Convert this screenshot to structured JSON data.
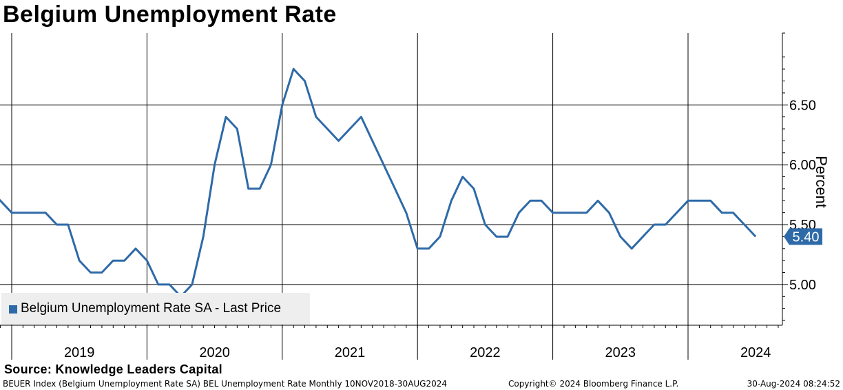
{
  "title": "Belgium Unemployment Rate",
  "source": "Source: Knowledge Leaders Capital",
  "footer": {
    "left": "BEUER Index (Belgium Unemployment Rate SA) BEL Unemployment Rate  Monthly 10NOV2018-30AUG2024",
    "middle": "Copyright© 2024 Bloomberg Finance L.P.",
    "right": "30-Aug-2024 08:24:52"
  },
  "colors": {
    "series": "#2e6aa8",
    "legend_bg": "#eeeeee",
    "last_tag": "#2e6aa8"
  },
  "chart_data": {
    "type": "line",
    "title": "Belgium Unemployment Rate",
    "xlabel": "",
    "ylabel": "Percent",
    "y_axis_side": "right",
    "ylim": [
      4.66,
      7.1
    ],
    "y_ticks": [
      5.0,
      5.5,
      6.0,
      6.5
    ],
    "y_tick_labels": [
      "5.00",
      "5.50",
      "6.00",
      "6.50"
    ],
    "x_ticks": [
      "2019",
      "2020",
      "2021",
      "2022",
      "2023",
      "2024"
    ],
    "grid": true,
    "legend": "bottom-left",
    "last_value_label": "5.40",
    "series": [
      {
        "name": "Belgium Unemployment Rate SA - Last Price",
        "x": [
          "2018-11",
          "2018-12",
          "2019-01",
          "2019-02",
          "2019-03",
          "2019-04",
          "2019-05",
          "2019-06",
          "2019-07",
          "2019-08",
          "2019-09",
          "2019-10",
          "2019-11",
          "2019-12",
          "2020-01",
          "2020-02",
          "2020-03",
          "2020-04",
          "2020-05",
          "2020-06",
          "2020-07",
          "2020-08",
          "2020-09",
          "2020-10",
          "2020-11",
          "2020-12",
          "2021-01",
          "2021-02",
          "2021-03",
          "2021-04",
          "2021-05",
          "2021-06",
          "2021-07",
          "2021-08",
          "2021-09",
          "2021-10",
          "2021-11",
          "2021-12",
          "2022-01",
          "2022-02",
          "2022-03",
          "2022-04",
          "2022-05",
          "2022-06",
          "2022-07",
          "2022-08",
          "2022-09",
          "2022-10",
          "2022-11",
          "2022-12",
          "2023-01",
          "2023-02",
          "2023-03",
          "2023-04",
          "2023-05",
          "2023-06",
          "2023-07",
          "2023-08",
          "2023-09",
          "2023-10",
          "2023-11",
          "2023-12",
          "2024-01",
          "2024-02",
          "2024-03",
          "2024-04",
          "2024-05",
          "2024-06",
          "2024-07"
        ],
        "values": [
          5.8,
          5.7,
          5.6,
          5.6,
          5.6,
          5.6,
          5.5,
          5.5,
          5.2,
          5.1,
          5.1,
          5.2,
          5.2,
          5.3,
          5.2,
          5.0,
          5.0,
          4.9,
          5.0,
          5.4,
          6.0,
          6.4,
          6.3,
          5.8,
          5.8,
          6.0,
          6.5,
          6.8,
          6.7,
          6.4,
          6.3,
          6.2,
          6.3,
          6.4,
          6.2,
          6.0,
          5.8,
          5.6,
          5.3,
          5.3,
          5.4,
          5.7,
          5.9,
          5.8,
          5.5,
          5.4,
          5.4,
          5.6,
          5.7,
          5.7,
          5.6,
          5.6,
          5.6,
          5.6,
          5.7,
          5.6,
          5.4,
          5.3,
          5.4,
          5.5,
          5.5,
          5.6,
          5.7,
          5.7,
          5.7,
          5.6,
          5.6,
          5.5,
          5.4
        ]
      }
    ]
  }
}
